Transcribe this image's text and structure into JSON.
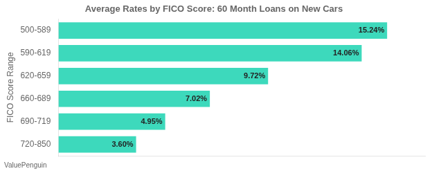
{
  "chart_data": {
    "type": "bar",
    "orientation": "horizontal",
    "title": "Average Rates by FICO Score: 60 Month Loans on New Cars",
    "ylabel": "FICO Score Range",
    "annotations": [
      "ValuePenguin"
    ],
    "categories": [
      "500-589",
      "590-619",
      "620-659",
      "660-689",
      "690-719",
      "720-850"
    ],
    "values": [
      15.24,
      14.06,
      9.72,
      7.02,
      4.95,
      3.6
    ],
    "value_labels": [
      "15.24%",
      "14.06%",
      "9.72%",
      "7.02%",
      "4.95%",
      "3.60%"
    ],
    "data_labels": true,
    "color": "#3DD9BC",
    "xlim": [
      0,
      17
    ],
    "grid": false,
    "tick_labels": "y"
  }
}
